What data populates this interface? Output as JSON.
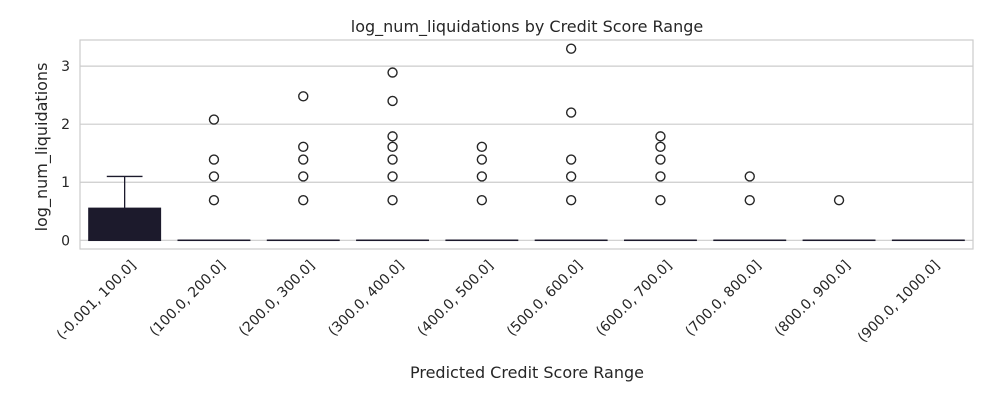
{
  "chart_data": {
    "type": "box",
    "title": "log_num_liquidations by Credit Score Range",
    "xlabel": "Predicted Credit Score Range",
    "ylabel": "log_num_liquidations",
    "ylim": [
      -0.15,
      3.45
    ],
    "yticks": [
      0,
      1,
      2,
      3
    ],
    "grid": "y",
    "box_color": "#1c1a2c",
    "line_color": "#1c1a2c",
    "grid_color": "#cccccc",
    "categories": [
      "(-0.001, 100.0]",
      "(100.0, 200.0]",
      "(200.0, 300.0]",
      "(300.0, 400.0]",
      "(400.0, 500.0]",
      "(500.0, 600.0]",
      "(600.0, 700.0]",
      "(700.0, 800.0]",
      "(800.0, 900.0]",
      "(900.0, 1000.0]"
    ],
    "boxes": [
      {
        "whisker_low": 0,
        "q1": 0,
        "median": 0,
        "q3": 0.55,
        "whisker_high": 1.1,
        "outliers": []
      },
      {
        "whisker_low": 0,
        "q1": 0,
        "median": 0,
        "q3": 0,
        "whisker_high": 0,
        "outliers": [
          0.69,
          1.1,
          1.39,
          2.08
        ]
      },
      {
        "whisker_low": 0,
        "q1": 0,
        "median": 0,
        "q3": 0,
        "whisker_high": 0,
        "outliers": [
          0.69,
          1.1,
          1.39,
          1.61,
          2.48
        ]
      },
      {
        "whisker_low": 0,
        "q1": 0,
        "median": 0,
        "q3": 0,
        "whisker_high": 0,
        "outliers": [
          0.69,
          1.1,
          1.39,
          1.61,
          1.79,
          2.4,
          2.89
        ]
      },
      {
        "whisker_low": 0,
        "q1": 0,
        "median": 0,
        "q3": 0,
        "whisker_high": 0,
        "outliers": [
          0.69,
          1.1,
          1.39,
          1.61
        ]
      },
      {
        "whisker_low": 0,
        "q1": 0,
        "median": 0,
        "q3": 0,
        "whisker_high": 0,
        "outliers": [
          0.69,
          1.1,
          1.39,
          2.2,
          3.3
        ]
      },
      {
        "whisker_low": 0,
        "q1": 0,
        "median": 0,
        "q3": 0,
        "whisker_high": 0,
        "outliers": [
          0.69,
          1.1,
          1.39,
          1.61,
          1.79
        ]
      },
      {
        "whisker_low": 0,
        "q1": 0,
        "median": 0,
        "q3": 0,
        "whisker_high": 0,
        "outliers": [
          0.69,
          1.1
        ]
      },
      {
        "whisker_low": 0,
        "q1": 0,
        "median": 0,
        "q3": 0,
        "whisker_high": 0,
        "outliers": [
          0.69
        ]
      },
      {
        "whisker_low": 0,
        "q1": 0,
        "median": 0,
        "q3": 0,
        "whisker_high": 0,
        "outliers": []
      }
    ]
  }
}
